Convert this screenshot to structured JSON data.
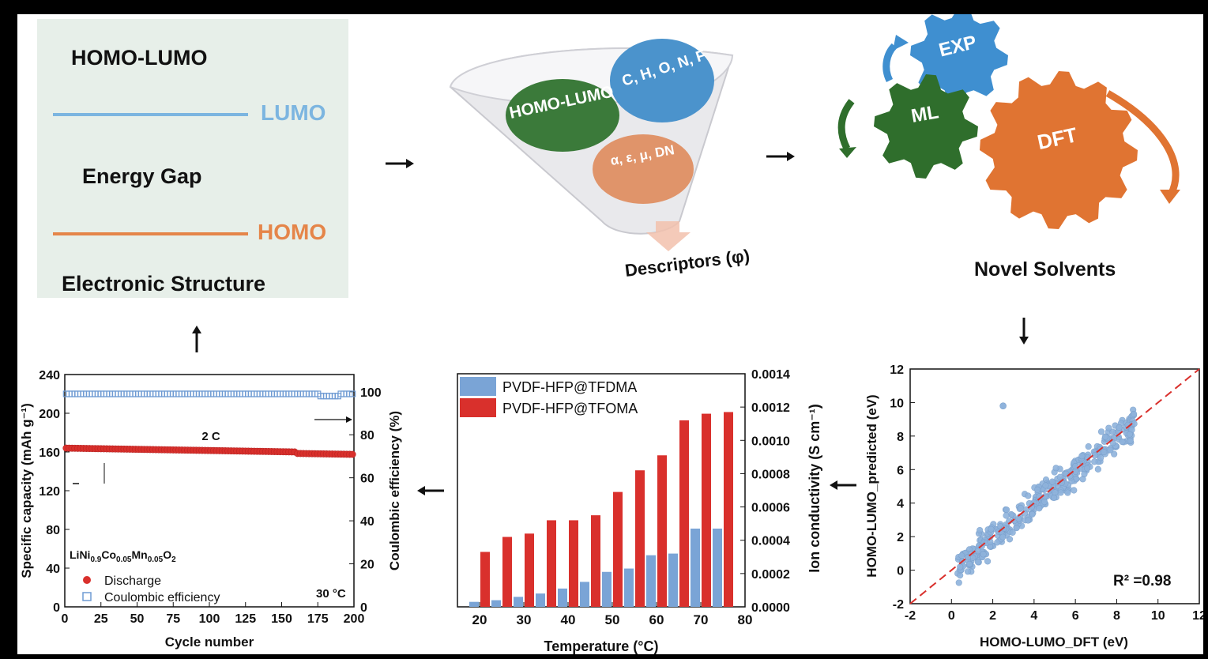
{
  "panel_homo_lumo": {
    "title": "HOMO-LUMO",
    "lumo": "LUMO",
    "gap": "Energy Gap",
    "homo": "HOMO",
    "footer": "Electronic Structure",
    "colors": {
      "lumo": "#7cb5e0",
      "homo": "#e58549",
      "bg": "#e7efe9"
    }
  },
  "panel_descriptors": {
    "green": "HOMO-LUMO",
    "blue": "C, H, O, N, F",
    "orange": "α, ε, μ, DN",
    "label": "Descriptors (φ)",
    "colors": {
      "green": "#3b7a3a",
      "blue": "#4b93cc",
      "orange": "#e0946a"
    }
  },
  "panel_gears": {
    "exp": "EXP",
    "ml": "ML",
    "dft": "DFT",
    "label": "Novel Solvents",
    "colors": {
      "exp": "#3f8fd0",
      "ml": "#2f6e2c",
      "dft": "#e07432"
    }
  },
  "chart_scatter": {
    "type": "scatter",
    "xlabel": "HOMO-LUMO_DFT (eV)",
    "ylabel": "HOMO-LUMO_predicted (eV)",
    "xlim": [
      -2,
      12
    ],
    "ylim": [
      -2,
      12
    ],
    "xticks": [
      "-2",
      "0",
      "2",
      "4",
      "6",
      "8",
      "10",
      "12"
    ],
    "yticks": [
      "-2",
      "0",
      "2",
      "4",
      "6",
      "8",
      "10",
      "12"
    ],
    "annotation": "R² =0.98",
    "point_color": "#8fb3dc",
    "outlier": [
      2.5,
      9.8
    ],
    "fit_line": [
      [
        -2,
        -2
      ],
      [
        12,
        12
      ]
    ]
  },
  "chart_bar": {
    "type": "bar",
    "xlabel": "Temperature (°C)",
    "ylabel": "Ion conductivity (S cm⁻¹)",
    "xticks": [
      "20",
      "30",
      "40",
      "50",
      "60",
      "70",
      "80"
    ],
    "yticks": [
      "0.0000",
      "0.0002",
      "0.0004",
      "0.0006",
      "0.0008",
      "0.0010",
      "0.0012",
      "0.0014"
    ],
    "ylim": [
      0,
      0.0014
    ],
    "categories": [
      20,
      25,
      30,
      35,
      40,
      45,
      50,
      55,
      60,
      65,
      70,
      75
    ],
    "series": [
      {
        "name": "PVDF-HFP@TFDMA",
        "color": "#7aa4d6",
        "values": [
          3e-05,
          4e-05,
          6e-05,
          8e-05,
          0.00011,
          0.00015,
          0.00021,
          0.00023,
          0.00031,
          0.00032,
          0.00047,
          0.00047
        ]
      },
      {
        "name": "PVDF-HFP@TFOMA",
        "color": "#d9302c",
        "values": [
          0.00033,
          0.00042,
          0.00044,
          0.00052,
          0.00052,
          0.00055,
          0.00069,
          0.00082,
          0.00091,
          0.00112,
          0.00116,
          0.00117
        ]
      }
    ]
  },
  "chart_cycle": {
    "type": "scatter",
    "xlabel": "Cycle number",
    "ylabel_left": "Specific capacity (mAh g⁻¹)",
    "ylabel_right": "Coulombic efficiency (%)",
    "xticks": [
      "0",
      "25",
      "50",
      "75",
      "100",
      "125",
      "150",
      "175",
      "200"
    ],
    "yticks_left": [
      "0",
      "40",
      "80",
      "120",
      "160",
      "200",
      "240"
    ],
    "yticks_right": [
      "0",
      "20",
      "40",
      "60",
      "80",
      "100"
    ],
    "xlim": [
      0,
      200
    ],
    "ylim_left": [
      0,
      240
    ],
    "ylim_right": [
      0,
      100
    ],
    "rate_label": "2 C",
    "material": "LiNi0.9Co0.05Mn0.05O2",
    "temperature": "30 °C",
    "series": [
      {
        "name": "Discharge",
        "color": "#d9302c",
        "start": 164,
        "end": 159
      },
      {
        "name": "Coulombic efficiency",
        "color": "#6f9bd3",
        "value": 99
      }
    ]
  }
}
